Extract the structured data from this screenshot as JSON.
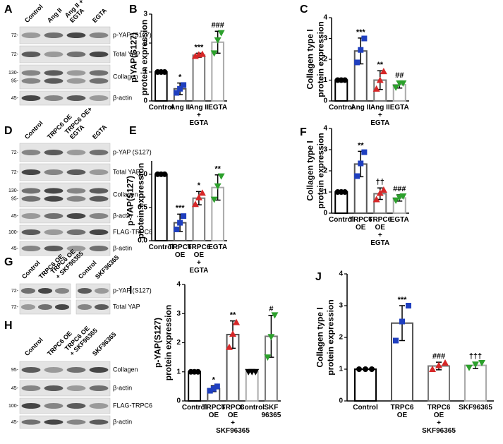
{
  "blots": [
    {
      "letter": "A",
      "lanes": [
        "Control",
        "Ang II",
        "Ang II +\nEGTA",
        "EGTA"
      ],
      "rows": [
        {
          "markers": [
            "72-"
          ],
          "label": "p-YAP (S127)"
        },
        {
          "markers": [
            "72-"
          ],
          "label": "Total YAP"
        },
        {
          "markers": [
            "130-",
            "95-"
          ],
          "label": "Collagen"
        },
        {
          "markers": [
            "45-"
          ],
          "label": "β-actin"
        }
      ]
    },
    {
      "letter": "D",
      "lanes": [
        "Control",
        "TRPC6 OE",
        "TRPC6 OE+\nEGTA",
        "EGTA"
      ],
      "rows": [
        {
          "markers": [
            "72-"
          ],
          "label": "p-YAP (S127)"
        },
        {
          "markers": [
            "72-"
          ],
          "label": "Total YAP"
        },
        {
          "markers": [
            "130-",
            "95-"
          ],
          "label": "Collagen"
        },
        {
          "markers": [
            "45-"
          ],
          "label": "β-actin"
        },
        {
          "markers": [
            "100-"
          ],
          "label": "FLAG-TRPC6"
        },
        {
          "markers": [
            "45-"
          ],
          "label": "β-actin"
        }
      ]
    },
    {
      "letter": "G",
      "lanes": [
        "Control",
        "TRPC6 OE",
        "TRPC6 OE\n+ SKF96365",
        "Control",
        "SKF96365"
      ],
      "rows": [
        {
          "markers": [
            "72-"
          ],
          "label": "p-YAP (S127)"
        },
        {
          "markers": [
            "72-"
          ],
          "label": "Total YAP"
        }
      ]
    },
    {
      "letter": "H",
      "lanes": [
        "Control",
        "TRPC6 OE",
        "TRPC6 OE\n+ SKF96365",
        "SKF96365"
      ],
      "rows": [
        {
          "markers": [
            "95-"
          ],
          "label": "Collagen"
        },
        {
          "markers": [
            "45-"
          ],
          "label": "β-actin"
        },
        {
          "markers": [
            "100-"
          ],
          "label": "FLAG-TRPC6"
        },
        {
          "markers": [
            "45-"
          ],
          "label": "β-actin"
        }
      ]
    }
  ],
  "chart_data": [
    {
      "type": "bar",
      "letter": "B",
      "ylabel": [
        "p-YAP(S127)",
        "protein expression"
      ],
      "categories": [
        "Control",
        "Ang II",
        "Ang II\n+\nEGTA",
        "EGTA"
      ],
      "values": [
        1,
        0.42,
        1.58,
        2.03
      ],
      "errors": [
        0,
        0.2,
        0.07,
        0.38
      ],
      "points": [
        [
          1,
          1,
          1
        ],
        [
          0.28,
          0.42,
          0.55
        ],
        [
          1.55,
          1.6,
          1.62
        ],
        [
          1.65,
          2.1,
          2.35
        ]
      ],
      "annotations": [
        null,
        "*",
        "***",
        "###"
      ],
      "colors": [
        "#000000",
        "#555555",
        "#777777",
        "#aaaaaa"
      ],
      "point_colors": [
        "#000000",
        "#1f3fbf",
        "#d62728",
        "#2ca02c"
      ],
      "markers": [
        "circle",
        "square",
        "triangle",
        "triangle-down"
      ],
      "ylim": [
        0,
        3
      ],
      "yticks": [
        0,
        1,
        2,
        3
      ]
    },
    {
      "type": "bar",
      "letter": "C",
      "ylabel": [
        "Collagen type I",
        "protein expression"
      ],
      "categories": [
        "Control",
        "Ang II",
        "Ang II\n+\nEGTA",
        "EGTA"
      ],
      "values": [
        1,
        2.4,
        1.0,
        0.78
      ],
      "errors": [
        0,
        0.62,
        0.45,
        0.16
      ],
      "points": [
        [
          1,
          1,
          1
        ],
        [
          1.85,
          2.45,
          3.0
        ],
        [
          0.58,
          1.0,
          1.42
        ],
        [
          0.65,
          0.85,
          0.85
        ]
      ],
      "annotations": [
        null,
        "***",
        "**",
        "##"
      ],
      "colors": [
        "#000000",
        "#555555",
        "#777777",
        "#aaaaaa"
      ],
      "point_colors": [
        "#000000",
        "#1f3fbf",
        "#d62728",
        "#2ca02c"
      ],
      "markers": [
        "circle",
        "square",
        "triangle",
        "triangle-down"
      ],
      "ylim": [
        0,
        4
      ],
      "yticks": [
        0,
        1,
        2,
        3,
        4
      ]
    },
    {
      "type": "bar",
      "letter": "E",
      "ylabel": [
        "p-YAP(S127)",
        "protein expression"
      ],
      "categories": [
        "Control",
        "TRPC6\nOE",
        "TRPC6\nOE\n+\nEGTA",
        "EGTA"
      ],
      "values": [
        1,
        0.27,
        0.64,
        0.8
      ],
      "errors": [
        0,
        0.13,
        0.1,
        0.19
      ],
      "points": [
        [
          1,
          1,
          1
        ],
        [
          0.17,
          0.27,
          0.37
        ],
        [
          0.55,
          0.65,
          0.72
        ],
        [
          0.62,
          0.82,
          0.97
        ]
      ],
      "annotations": [
        null,
        "***",
        "*",
        "**"
      ],
      "colors": [
        "#000000",
        "#555555",
        "#777777",
        "#aaaaaa"
      ],
      "point_colors": [
        "#000000",
        "#1f3fbf",
        "#d62728",
        "#2ca02c"
      ],
      "markers": [
        "circle",
        "square",
        "triangle",
        "triangle-down"
      ],
      "ylim": [
        0,
        1.2
      ],
      "yticks": [
        {
          "value": 0,
          "label": "0.0"
        },
        {
          "value": 0.5,
          "label": "0.5"
        },
        {
          "value": 1,
          "label": "1.0"
        }
      ]
    },
    {
      "type": "bar",
      "letter": "F",
      "ylabel": [
        "Collagen type I",
        "protein expression"
      ],
      "categories": [
        "Control",
        "TRPC6\nOE",
        "TRPC6\nOE\n+\nEGTA",
        "EGTA"
      ],
      "values": [
        1,
        2.32,
        0.92,
        0.72
      ],
      "errors": [
        0,
        0.6,
        0.27,
        0.15
      ],
      "points": [
        [
          1,
          1,
          1
        ],
        [
          1.75,
          2.35,
          2.88
        ],
        [
          0.65,
          0.95,
          1.1
        ],
        [
          0.6,
          0.75,
          0.8
        ]
      ],
      "annotations": [
        null,
        "**",
        "††",
        "###"
      ],
      "colors": [
        "#000000",
        "#555555",
        "#777777",
        "#aaaaaa"
      ],
      "point_colors": [
        "#000000",
        "#1f3fbf",
        "#d62728",
        "#2ca02c"
      ],
      "markers": [
        "circle",
        "square",
        "triangle",
        "triangle-down"
      ],
      "ylim": [
        0,
        4
      ],
      "yticks": [
        0,
        1,
        2,
        3,
        4
      ]
    },
    {
      "type": "bar",
      "letter": "I",
      "ylabel": [
        "p-YAP(S127)",
        "protein expression"
      ],
      "categories": [
        "Control",
        "TRPC6\nOE",
        "TRPC6\nOE\n+\nSKF96365",
        "Control",
        "SKF\n96365"
      ],
      "values": [
        1,
        0.42,
        2.28,
        1.0,
        2.22
      ],
      "errors": [
        0,
        0.1,
        0.47,
        0,
        0.72
      ],
      "points": [
        [
          1,
          1,
          1
        ],
        [
          0.35,
          0.42,
          0.5
        ],
        [
          1.85,
          2.3,
          2.7
        ],
        [
          1,
          1,
          1
        ],
        [
          1.5,
          2.2,
          2.95
        ]
      ],
      "annotations": [
        null,
        "*",
        "**",
        null,
        "#"
      ],
      "colors": [
        "#000000",
        "#555555",
        "#555555",
        "#aaaaaa",
        "#777777"
      ],
      "point_colors": [
        "#000000",
        "#1f3fbf",
        "#d62728",
        "#000000",
        "#2ca02c"
      ],
      "markers": [
        "circle",
        "square",
        "triangle",
        "triangle-down",
        "triangle-down"
      ],
      "ylim": [
        0,
        4
      ],
      "yticks": [
        0,
        1,
        2,
        3,
        4
      ]
    },
    {
      "type": "bar",
      "letter": "J",
      "ylabel": [
        "Collagen type I",
        "protein expression"
      ],
      "categories": [
        "Control",
        "TRPC6\nOE",
        "TRPC6\nOE\n+\nSKF96365",
        "SKF96365"
      ],
      "values": [
        1,
        2.45,
        1.1,
        1.12
      ],
      "errors": [
        0,
        0.55,
        0.12,
        0.1
      ],
      "points": [
        [
          1,
          1,
          1
        ],
        [
          1.9,
          2.5,
          3.0
        ],
        [
          1.0,
          1.12,
          1.2
        ],
        [
          1.05,
          1.15,
          1.2
        ]
      ],
      "annotations": [
        null,
        "***",
        "###",
        "†††"
      ],
      "colors": [
        "#000000",
        "#555555",
        "#777777",
        "#aaaaaa"
      ],
      "point_colors": [
        "#000000",
        "#1f3fbf",
        "#d62728",
        "#2ca02c"
      ],
      "markers": [
        "circle",
        "square",
        "triangle",
        "triangle-down"
      ],
      "ylim": [
        0,
        4
      ],
      "yticks": [
        0,
        1,
        2,
        3,
        4
      ]
    }
  ]
}
